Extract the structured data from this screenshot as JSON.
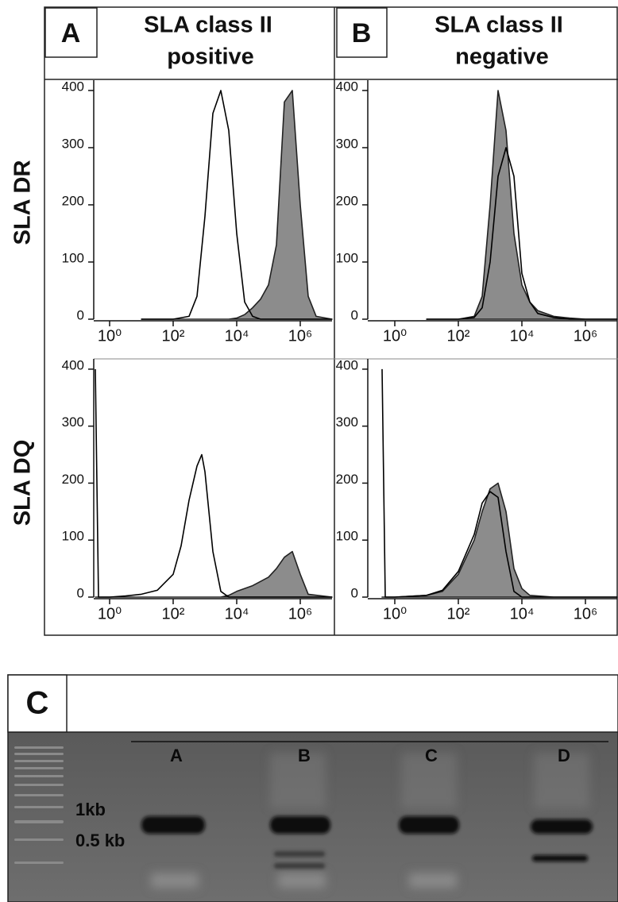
{
  "panels": [
    {
      "letter": "A",
      "title_lines": [
        "SLA class II",
        "positive"
      ]
    },
    {
      "letter": "B",
      "title_lines": [
        "SLA class II",
        "negative"
      ]
    }
  ],
  "rows": [
    "SLA DR",
    "SLA DQ"
  ],
  "chart_data": [
    {
      "type": "area",
      "x": [
        1,
        1.5,
        2,
        2.5,
        2.75,
        3,
        3.25,
        3.5,
        3.75,
        4,
        4.25,
        4.5,
        4.75,
        5,
        5.25,
        5.5,
        5.75,
        6,
        6.25,
        6.5,
        7
      ],
      "series": [
        {
          "color": "#222222",
          "fill": "#8c8c8c",
          "values": [
            0,
            0,
            0,
            0,
            0,
            0,
            0,
            0,
            0,
            2,
            8,
            20,
            35,
            60,
            130,
            380,
            400,
            200,
            40,
            5,
            0
          ]
        },
        {
          "color": "#000000",
          "fill": "none",
          "values": [
            0,
            0,
            0,
            5,
            40,
            180,
            360,
            400,
            330,
            150,
            30,
            5,
            0,
            0,
            0,
            0,
            0,
            0,
            0,
            0,
            0
          ]
        }
      ],
      "xlim": [
        -0.5,
        7
      ],
      "ylim": [
        0,
        418
      ],
      "xticks": [
        {
          "value": 0,
          "label": "10⁰"
        },
        {
          "value": 2,
          "label": "10²"
        },
        {
          "value": 4,
          "label": "10⁴"
        },
        {
          "value": 6,
          "label": "10⁶"
        }
      ],
      "yticks": [
        0,
        100,
        200,
        300,
        400
      ]
    },
    {
      "type": "area",
      "x": [
        1,
        2,
        2.5,
        2.75,
        3,
        3.25,
        3.5,
        3.75,
        4,
        4.25,
        4.5,
        5,
        5.5,
        6,
        7
      ],
      "series": [
        {
          "color": "#222222",
          "fill": "#8c8c8c",
          "values": [
            0,
            0,
            5,
            40,
            200,
            400,
            330,
            150,
            60,
            30,
            15,
            5,
            2,
            0,
            0
          ]
        },
        {
          "color": "#000000",
          "fill": "none",
          "values": [
            0,
            0,
            3,
            20,
            100,
            250,
            300,
            250,
            80,
            30,
            10,
            3,
            0,
            0,
            0
          ]
        }
      ],
      "xlim": [
        -0.85,
        7
      ],
      "ylim": [
        0,
        418
      ],
      "xticks": [
        {
          "value": 0,
          "label": "10⁰"
        },
        {
          "value": 2,
          "label": "10²"
        },
        {
          "value": 4,
          "label": "10⁴"
        },
        {
          "value": 6,
          "label": "10⁶"
        }
      ],
      "yticks": [
        0,
        100,
        200,
        300,
        400
      ]
    },
    {
      "type": "area",
      "x": [
        -0.45,
        -0.35,
        0,
        0.5,
        1,
        1.5,
        2,
        2.25,
        2.5,
        2.75,
        2.9,
        3,
        3.25,
        3.5,
        3.75,
        4,
        4.5,
        5,
        5.25,
        5.5,
        5.75,
        6,
        6.25,
        7
      ],
      "series": [
        {
          "color": "#222222",
          "fill": "#8c8c8c",
          "values": [
            0,
            0,
            0,
            0,
            0,
            0,
            0,
            0,
            0,
            0,
            0,
            0,
            0,
            0,
            3,
            10,
            20,
            35,
            50,
            70,
            80,
            40,
            5,
            0
          ]
        },
        {
          "color": "#000000",
          "fill": "none",
          "values": [
            400,
            0,
            0,
            2,
            5,
            12,
            40,
            90,
            170,
            230,
            250,
            220,
            80,
            10,
            0,
            0,
            0,
            0,
            0,
            0,
            0,
            0,
            0,
            0
          ]
        }
      ],
      "xlim": [
        -0.5,
        7
      ],
      "ylim": [
        0,
        418
      ],
      "xticks": [
        {
          "value": 0,
          "label": "10⁰"
        },
        {
          "value": 2,
          "label": "10²"
        },
        {
          "value": 4,
          "label": "10⁴"
        },
        {
          "value": 6,
          "label": "10⁶"
        }
      ],
      "yticks": [
        0,
        100,
        200,
        300,
        400
      ]
    },
    {
      "type": "area",
      "x": [
        -0.4,
        -0.3,
        0,
        1,
        1.5,
        2,
        2.5,
        2.75,
        3,
        3.25,
        3.5,
        3.75,
        4,
        4.25,
        5,
        7
      ],
      "series": [
        {
          "color": "#222222",
          "fill": "#8c8c8c",
          "values": [
            0,
            0,
            0,
            3,
            10,
            40,
            100,
            150,
            190,
            200,
            150,
            50,
            15,
            3,
            0,
            0
          ]
        },
        {
          "color": "#000000",
          "fill": "none",
          "values": [
            400,
            0,
            0,
            3,
            12,
            45,
            110,
            165,
            185,
            175,
            80,
            10,
            0,
            0,
            0,
            0
          ]
        }
      ],
      "xlim": [
        -0.85,
        7
      ],
      "ylim": [
        0,
        418
      ],
      "xticks": [
        {
          "value": 0,
          "label": "10⁰"
        },
        {
          "value": 2,
          "label": "10²"
        },
        {
          "value": 4,
          "label": "10⁴"
        },
        {
          "value": 6,
          "label": "10⁶"
        }
      ],
      "yticks": [
        0,
        100,
        200,
        300,
        400
      ]
    }
  ],
  "gel": {
    "letter": "C",
    "lanes": [
      "A",
      "B",
      "C",
      "D"
    ],
    "markers": [
      "1kb",
      "0.5 kb"
    ]
  }
}
